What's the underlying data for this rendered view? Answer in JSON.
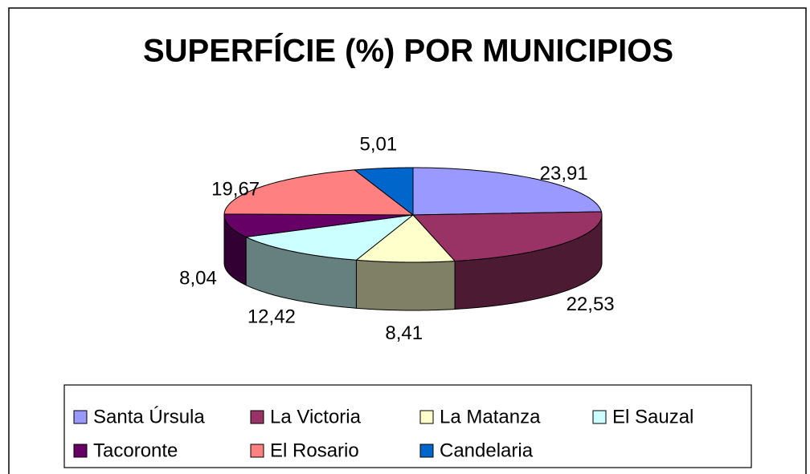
{
  "chart_data": {
    "type": "pie3d",
    "title": "SUPERFÍCIE (%) POR MUNICIPIOS",
    "categories": [
      "Santa Úrsula",
      "La Victoria",
      "La Matanza",
      "El Sauzal",
      "Tacoronte",
      "El Rosario",
      "Candelaria"
    ],
    "values": [
      23.91,
      22.53,
      8.41,
      12.42,
      8.04,
      19.67,
      5.01
    ],
    "value_labels": [
      "23,91",
      "22,53",
      "8,41",
      "12,42",
      "8,04",
      "19,67",
      "5,01"
    ],
    "colors": [
      "#9999ff",
      "#993366",
      "#ffffcc",
      "#ccffff",
      "#660066",
      "#ff8080",
      "#0066cc"
    ],
    "legend": "bottom"
  }
}
